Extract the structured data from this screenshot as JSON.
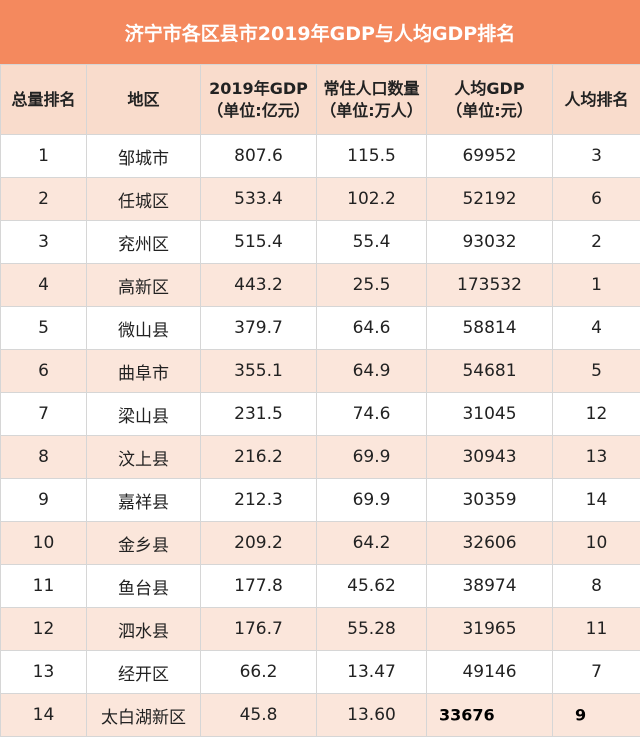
{
  "title": "济宁市各区县市2019年GDP与人均GDP排名",
  "headers": [
    {
      "l1": "总量排名",
      "l2": ""
    },
    {
      "l1": "地区",
      "l2": ""
    },
    {
      "l1": "2019年GDP",
      "l2": "（单位:亿元）"
    },
    {
      "l1": "常住人口数量",
      "l2": "（单位:万人）"
    },
    {
      "l1": "人均GDP",
      "l2": "（单位:元）"
    },
    {
      "l1": "人均排名",
      "l2": ""
    }
  ],
  "rows": [
    {
      "rank": "1",
      "region": "邹城市",
      "gdp": "807.6",
      "pop": "115.5",
      "per_capita": "69952",
      "pc_rank": "3"
    },
    {
      "rank": "2",
      "region": "任城区",
      "gdp": "533.4",
      "pop": "102.2",
      "per_capita": "52192",
      "pc_rank": "6"
    },
    {
      "rank": "3",
      "region": "兖州区",
      "gdp": "515.4",
      "pop": "55.4",
      "per_capita": "93032",
      "pc_rank": "2"
    },
    {
      "rank": "4",
      "region": "高新区",
      "gdp": "443.2",
      "pop": "25.5",
      "per_capita": "173532",
      "pc_rank": "1"
    },
    {
      "rank": "5",
      "region": "微山县",
      "gdp": "379.7",
      "pop": "64.6",
      "per_capita": "58814",
      "pc_rank": "4"
    },
    {
      "rank": "6",
      "region": "曲阜市",
      "gdp": "355.1",
      "pop": "64.9",
      "per_capita": "54681",
      "pc_rank": "5"
    },
    {
      "rank": "7",
      "region": "梁山县",
      "gdp": "231.5",
      "pop": "74.6",
      "per_capita": "31045",
      "pc_rank": "12"
    },
    {
      "rank": "8",
      "region": "汶上县",
      "gdp": "216.2",
      "pop": "69.9",
      "per_capita": "30943",
      "pc_rank": "13"
    },
    {
      "rank": "9",
      "region": "嘉祥县",
      "gdp": "212.3",
      "pop": "69.9",
      "per_capita": "30359",
      "pc_rank": "14"
    },
    {
      "rank": "10",
      "region": "金乡县",
      "gdp": "209.2",
      "pop": "64.2",
      "per_capita": "32606",
      "pc_rank": "10"
    },
    {
      "rank": "11",
      "region": "鱼台县",
      "gdp": "177.8",
      "pop": "45.62",
      "per_capita": "38974",
      "pc_rank": "8"
    },
    {
      "rank": "12",
      "region": "泗水县",
      "gdp": "176.7",
      "pop": "55.28",
      "per_capita": "31965",
      "pc_rank": "11"
    },
    {
      "rank": "13",
      "region": "经开区",
      "gdp": "66.2",
      "pop": "13.47",
      "per_capita": "49146",
      "pc_rank": "7"
    },
    {
      "rank": "14",
      "region": "太白湖新区",
      "gdp": "45.8",
      "pop": "13.60",
      "per_capita": "33676",
      "pc_rank": "9"
    }
  ]
}
